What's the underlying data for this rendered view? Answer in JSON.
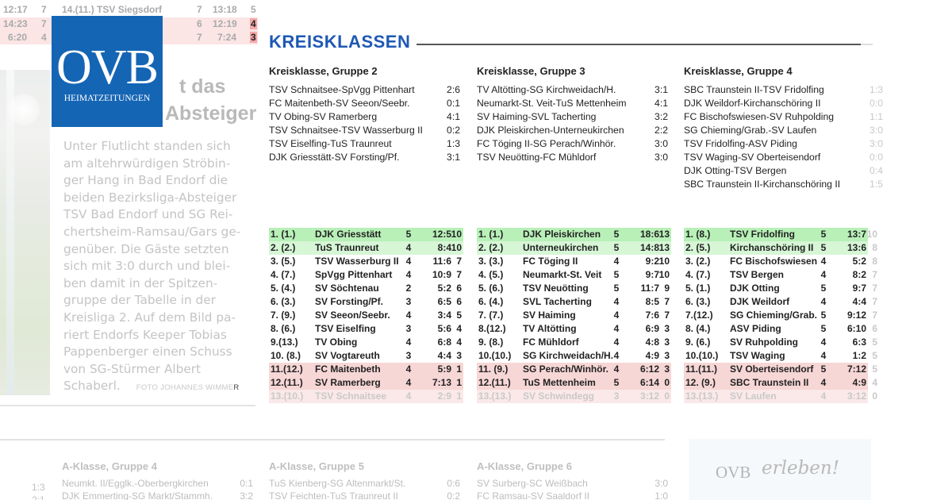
{
  "top_strip": {
    "rows": [
      {
        "left_goals": "12:17",
        "left_pts": "7",
        "team": "14.(11.) TSV Siegsdorf",
        "sp": "7",
        "goals": "13:18",
        "pts": "5"
      },
      {
        "left_goals": "14:23",
        "left_pts": "7",
        "team": "",
        "sp": "6",
        "goals": "12:19",
        "pts": "4"
      },
      {
        "left_goals": "6:20",
        "left_pts": "4",
        "team": "",
        "sp": "7",
        "goals": "7:24",
        "pts": "3"
      }
    ]
  },
  "logo": {
    "big": "OVB",
    "small": "HEIMATZEITUNGEN",
    "color": "#1565b5"
  },
  "article": {
    "headline_lines": [
      "t das",
      "Absteiger"
    ],
    "caption_lines": [
      "Unter Flutlicht standen sich",
      "am altehrwürdigen Ströbin-",
      "ger Hang in Bad Endorf die",
      "beiden Bezirksliga-Absteiger",
      "TSV Bad Endorf und SG Rei-",
      "chertsheim-Ramsau/Gars ge-",
      "genüber. Die Gäste setzten",
      "sich mit 3:0 durch und blei-",
      "ben damit in der Spitzen-",
      "gruppe der Tabelle in der",
      "Kreisliga 2. Auf dem Bild pa-",
      "riert Endorfs Keeper Tobias",
      "Pappenberger einen Schuss",
      "von SG-Stürmer Albert",
      "Schaberl."
    ],
    "credit": "FOTO JOHANNES WIMME",
    "credit_last": "R"
  },
  "section": {
    "title": "KREISKLASSEN",
    "accent": "#1e58b4"
  },
  "groups": [
    {
      "title": "Kreisklasse, Gruppe 2",
      "results": [
        {
          "match": "TSV Schnaitsee-SpVgg Pittenhart",
          "score": "2:6"
        },
        {
          "match": "FC Maitenbeth-SV Seeon/Seebr.",
          "score": "0:1"
        },
        {
          "match": "TV Obing-SV Ramerberg",
          "score": "4:1"
        },
        {
          "match": "TSV Schnaitsee-TSV Wasserburg II",
          "score": "0:2"
        },
        {
          "match": "TSV Eiselfing-TuS Traunreut",
          "score": "1:3"
        },
        {
          "match": "DJK Griesstätt-SV Forsting/Pf.",
          "score": "3:1"
        }
      ],
      "table": [
        {
          "pos": "1. (1.)",
          "team": "DJK Griesstätt",
          "sp": "5",
          "goals": "12:5",
          "pts": "10",
          "cls": "green"
        },
        {
          "pos": "2. (2.)",
          "team": "TuS Traunreut",
          "sp": "4",
          "goals": "8:4",
          "pts": "10",
          "cls": "green2"
        },
        {
          "pos": "3. (5.)",
          "team": "TSV Wasserburg II",
          "sp": "4",
          "goals": "11:6",
          "pts": "7",
          "cls": ""
        },
        {
          "pos": "4. (7.)",
          "team": "SpVgg Pittenhart",
          "sp": "4",
          "goals": "10:9",
          "pts": "7",
          "cls": ""
        },
        {
          "pos": "5. (4.)",
          "team": "SV Söchtenau",
          "sp": "2",
          "goals": "5:2",
          "pts": "6",
          "cls": ""
        },
        {
          "pos": "6. (3.)",
          "team": "SV Forsting/Pf.",
          "sp": "3",
          "goals": "6:5",
          "pts": "6",
          "cls": ""
        },
        {
          "pos": "7. (9.)",
          "team": "SV Seeon/Seebr.",
          "sp": "4",
          "goals": "3:4",
          "pts": "5",
          "cls": ""
        },
        {
          "pos": "8. (6.)",
          "team": "TSV Eiselfing",
          "sp": "3",
          "goals": "5:6",
          "pts": "4",
          "cls": ""
        },
        {
          "pos": "9.(13.)",
          "team": "TV Obing",
          "sp": "4",
          "goals": "6:8",
          "pts": "4",
          "cls": ""
        },
        {
          "pos": "10. (8.)",
          "team": "SV Vogtareuth",
          "sp": "3",
          "goals": "4:4",
          "pts": "3",
          "cls": ""
        },
        {
          "pos": "11.(12.)",
          "team": "FC Maitenbeth",
          "sp": "4",
          "goals": "5:9",
          "pts": "1",
          "cls": "red"
        },
        {
          "pos": "12.(11.)",
          "team": "SV Ramerberg",
          "sp": "4",
          "goals": "7:13",
          "pts": "1",
          "cls": "red"
        },
        {
          "pos": "13.(10.)",
          "team": "TSV Schnaitsee",
          "sp": "4",
          "goals": "2:9",
          "pts": "1",
          "cls": "faded"
        }
      ]
    },
    {
      "title": "Kreisklasse, Gruppe 3",
      "results": [
        {
          "match": "TV Altötting-SG Kirchweidach/H.",
          "score": "3:1"
        },
        {
          "match": "Neumarkt-St. Veit-TuS Mettenheim",
          "score": "4:1"
        },
        {
          "match": "SV Haiming-SVL Tacherting",
          "score": "3:2"
        },
        {
          "match": "DJK Pleiskirchen-Unterneukirchen",
          "score": "2:2"
        },
        {
          "match": "FC Töging II-SG Perach/Winhör.",
          "score": "3:0"
        },
        {
          "match": "TSV Neuötting-FC Mühldorf",
          "score": "3:0"
        }
      ],
      "table": [
        {
          "pos": "1. (1.)",
          "team": "DJK Pleiskirchen",
          "sp": "5",
          "goals": "18:6",
          "pts": "13",
          "cls": "green"
        },
        {
          "pos": "2. (2.)",
          "team": "Unterneukirchen",
          "sp": "5",
          "goals": "14:8",
          "pts": "13",
          "cls": "green2"
        },
        {
          "pos": "3. (3.)",
          "team": "FC Töging II",
          "sp": "4",
          "goals": "9:2",
          "pts": "10",
          "cls": ""
        },
        {
          "pos": "4. (5.)",
          "team": "Neumarkt-St. Veit",
          "sp": "5",
          "goals": "9:7",
          "pts": "10",
          "cls": ""
        },
        {
          "pos": "5. (6.)",
          "team": "TSV Neuötting",
          "sp": "5",
          "goals": "11:7",
          "pts": "9",
          "cls": ""
        },
        {
          "pos": "6. (4.)",
          "team": "SVL Tacherting",
          "sp": "4",
          "goals": "8:5",
          "pts": "7",
          "cls": ""
        },
        {
          "pos": "7. (7.)",
          "team": "SV Haiming",
          "sp": "4",
          "goals": "7:6",
          "pts": "7",
          "cls": ""
        },
        {
          "pos": "8.(12.)",
          "team": "TV Altötting",
          "sp": "4",
          "goals": "6:9",
          "pts": "3",
          "cls": ""
        },
        {
          "pos": "9. (8.)",
          "team": "FC Mühldorf",
          "sp": "4",
          "goals": "4:8",
          "pts": "3",
          "cls": ""
        },
        {
          "pos": "10.(10.)",
          "team": "SG Kirchweidach/H.",
          "sp": "4",
          "goals": "4:9",
          "pts": "3",
          "cls": ""
        },
        {
          "pos": "11. (9.)",
          "team": "SG Perach/Winhör.",
          "sp": "4",
          "goals": "6:12",
          "pts": "3",
          "cls": "red"
        },
        {
          "pos": "12.(11.)",
          "team": "TuS Mettenheim",
          "sp": "5",
          "goals": "6:14",
          "pts": "0",
          "cls": "red"
        },
        {
          "pos": "13.(13.)",
          "team": "SV Schwindegg",
          "sp": "3",
          "goals": "3:12",
          "pts": "0",
          "cls": "faded"
        }
      ]
    },
    {
      "title": "Kreisklasse, Gruppe 4",
      "results": [
        {
          "match": "SBC Traunstein II-TSV Fridolfing",
          "score": "1:3"
        },
        {
          "match": "DJK Weildorf-Kirchanschöring II",
          "score": "0:0"
        },
        {
          "match": "FC Bischofswiesen-SV Ruhpolding",
          "score": "1:1"
        },
        {
          "match": "SG Chieming/Grab.-SV Laufen",
          "score": "3:0"
        },
        {
          "match": "TSV Fridolfing-ASV Piding",
          "score": "3:0"
        },
        {
          "match": "TSV Waging-SV Oberteisendorf",
          "score": "0:0"
        },
        {
          "match": "DJK Otting-TSV Bergen",
          "score": "0:4"
        },
        {
          "match": "SBC Traunstein II-Kirchanschöring II",
          "score": "1:5"
        }
      ],
      "table": [
        {
          "pos": "1. (8.)",
          "team": "TSV Fridolfing",
          "sp": "5",
          "goals": "13:7",
          "pts": "10",
          "cls": "green"
        },
        {
          "pos": "2. (5.)",
          "team": "Kirchanschöring II",
          "sp": "5",
          "goals": "13:6",
          "pts": "8",
          "cls": "green2"
        },
        {
          "pos": "3. (2.)",
          "team": "FC Bischofswiesen",
          "sp": "4",
          "goals": "5:2",
          "pts": "8",
          "cls": ""
        },
        {
          "pos": "4. (7.)",
          "team": "TSV Bergen",
          "sp": "4",
          "goals": "8:2",
          "pts": "7",
          "cls": ""
        },
        {
          "pos": "5. (1.)",
          "team": "DJK Otting",
          "sp": "5",
          "goals": "9:7",
          "pts": "7",
          "cls": ""
        },
        {
          "pos": "6. (3.)",
          "team": "DJK Weildorf",
          "sp": "4",
          "goals": "4:4",
          "pts": "7",
          "cls": ""
        },
        {
          "pos": "7.(12.)",
          "team": "SG Chieming/Grab.",
          "sp": "5",
          "goals": "9:12",
          "pts": "7",
          "cls": ""
        },
        {
          "pos": "8. (4.)",
          "team": "ASV Piding",
          "sp": "5",
          "goals": "6:10",
          "pts": "6",
          "cls": ""
        },
        {
          "pos": "9. (6.)",
          "team": "SV Ruhpolding",
          "sp": "4",
          "goals": "6:3",
          "pts": "5",
          "cls": ""
        },
        {
          "pos": "10.(10.)",
          "team": "TSV Waging",
          "sp": "4",
          "goals": "1:2",
          "pts": "5",
          "cls": ""
        },
        {
          "pos": "11.(11.)",
          "team": "SV Oberteisendorf",
          "sp": "5",
          "goals": "7:12",
          "pts": "5",
          "cls": "red"
        },
        {
          "pos": "12. (9.)",
          "team": "SBC Traunstein II",
          "sp": "4",
          "goals": "4:9",
          "pts": "4",
          "cls": "red"
        },
        {
          "pos": "13.(13.)",
          "team": "SV Laufen",
          "sp": "4",
          "goals": "3:12",
          "pts": "0",
          "cls": "faded"
        }
      ]
    }
  ],
  "a_klasse": {
    "left_scores": [
      "1:3",
      "2:1"
    ],
    "groups": [
      {
        "title": "A-Klasse, Gruppe 4",
        "results": [
          {
            "match": "Neumkt. II/Egglk.-Oberbergkirchen",
            "score": "0:1"
          },
          {
            "match": "DJK Emmerting-SG Markt/Stammh.",
            "score": "3:2"
          }
        ]
      },
      {
        "title": "A-Klasse, Gruppe 5",
        "results": [
          {
            "match": "TuS Kienberg-SG Altenmarkt/St.",
            "score": "0:6"
          },
          {
            "match": "TSV Feichten-TuS Traunreut II",
            "score": "0:2"
          }
        ]
      },
      {
        "title": "A-Klasse, Gruppe 6",
        "results": [
          {
            "match": "SV Surberg-SC Weißbach",
            "score": "3:0"
          },
          {
            "match": "FC Ramsau-SV Saaldorf II",
            "score": "1:0"
          }
        ]
      }
    ]
  },
  "promo": {
    "ovb": "OVB",
    "erleben": "erleben!"
  }
}
